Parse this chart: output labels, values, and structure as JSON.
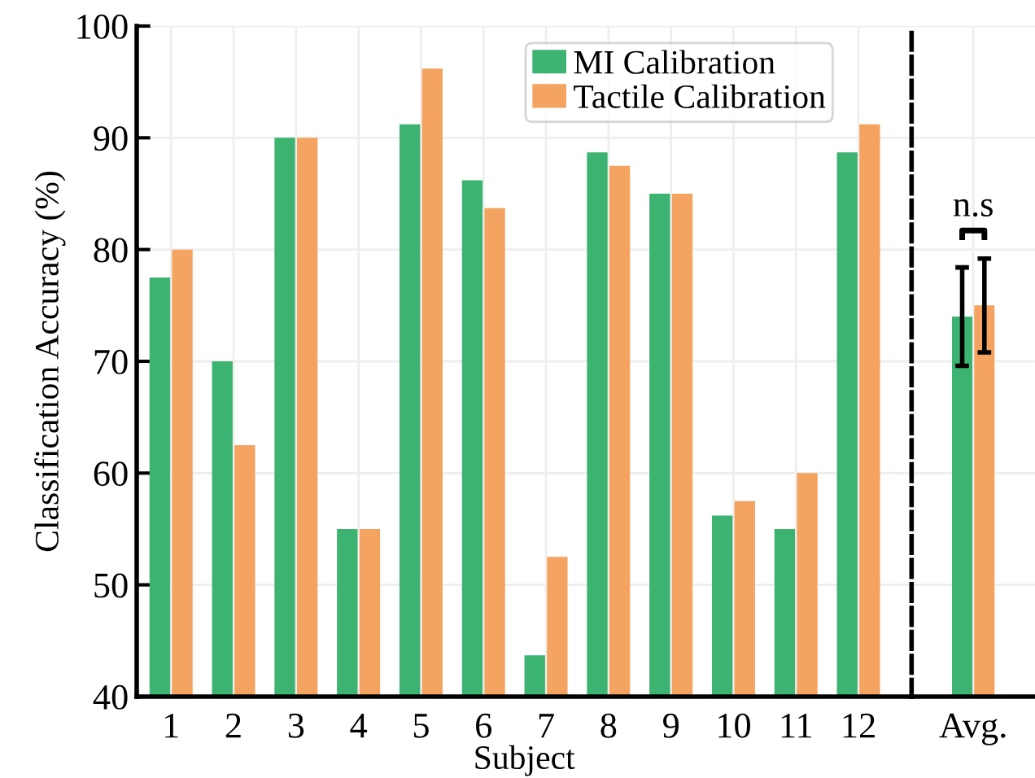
{
  "chart_data": [
    {
      "type": "bar",
      "xlabel": "Subject",
      "ylabel": "Classification Accuracy (%)",
      "categories": [
        "1",
        "2",
        "3",
        "4",
        "5",
        "6",
        "7",
        "8",
        "9",
        "10",
        "11",
        "12"
      ],
      "series": [
        {
          "name": "MI Calibration",
          "color": "#3cb371",
          "values": [
            77.5,
            70,
            90,
            55,
            91.2,
            86.2,
            43.7,
            88.7,
            85,
            56.2,
            55,
            88.7
          ]
        },
        {
          "name": "Tactile Calibration",
          "color": "#f4a460",
          "values": [
            80,
            62.5,
            90,
            55,
            96.2,
            83.7,
            52.5,
            87.5,
            85,
            57.5,
            60,
            91.2
          ]
        }
      ],
      "ylim": [
        40,
        100
      ],
      "yticks": [
        40,
        50,
        60,
        70,
        80,
        90,
        100
      ],
      "grid": true,
      "legend": "top"
    },
    {
      "type": "bar",
      "categories": [
        "Avg."
      ],
      "series": [
        {
          "color": "#3cb371",
          "values": [
            74
          ],
          "errors": [
            4.4
          ]
        },
        {
          "color": "#f4a460",
          "values": [
            75
          ],
          "errors": [
            4.2
          ]
        }
      ],
      "ylim": [
        40,
        100
      ],
      "yticks": [
        40,
        50,
        60,
        70,
        80,
        90,
        100
      ],
      "tick_labels": "x",
      "annotations": [
        "n.s"
      ],
      "grid": true
    }
  ]
}
